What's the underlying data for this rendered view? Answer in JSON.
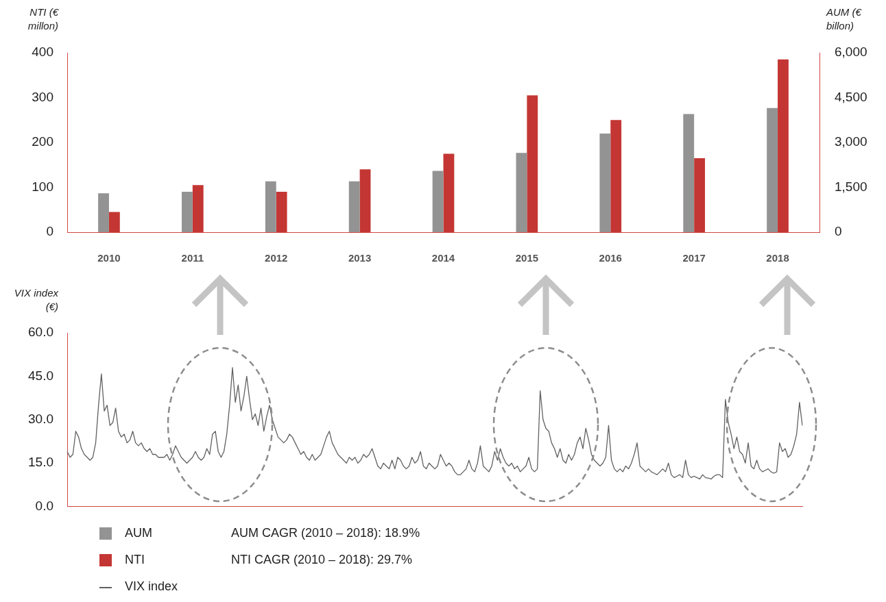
{
  "chart_data": [
    {
      "type": "bar",
      "ylabel": "NTI (€ millon)",
      "y2label": "AUM (€ billon)",
      "categories": [
        "2010",
        "2011",
        "2012",
        "2013",
        "2014",
        "2015",
        "2016",
        "2017",
        "2018"
      ],
      "series": [
        {
          "name": "AUM",
          "color": "#939393",
          "axis": "y2",
          "values": [
            1300,
            1350,
            1700,
            1700,
            2050,
            2650,
            3300,
            3950,
            4150
          ]
        },
        {
          "name": "NTI",
          "color": "#c43633",
          "values": [
            45,
            105,
            90,
            140,
            175,
            305,
            250,
            165,
            385
          ]
        }
      ],
      "ylim": [
        0,
        400
      ],
      "yticks": [
        0,
        100,
        200,
        300,
        400
      ],
      "y2lim": [
        0,
        6000
      ],
      "y2ticks": [
        0,
        {
          "value": 1500,
          "label": "1,500"
        },
        {
          "value": 3000,
          "label": "3,000"
        },
        {
          "value": 4500,
          "label": "4,500"
        },
        {
          "value": 6000,
          "label": "6,000"
        }
      ],
      "legend": "bottom",
      "annotations": [
        "AUM CAGR (2010 – 2018): 18.9%",
        "NTI CAGR (2010 – 2018): 29.7%"
      ]
    },
    {
      "type": "line",
      "ylabel": "VIX index (€)",
      "marker": "none",
      "tick_labels": "y",
      "legend": "bottom",
      "categories": [
        null,
        null,
        null,
        null,
        null,
        null,
        null,
        null,
        null,
        null,
        null,
        null,
        null,
        null,
        null,
        null,
        null,
        null,
        null,
        null,
        null,
        null,
        null,
        null,
        null,
        null,
        null,
        null,
        null,
        null,
        null,
        null,
        null,
        null,
        null,
        null,
        null,
        null,
        null,
        null,
        null,
        null,
        null,
        null,
        null,
        null,
        null,
        null,
        null,
        null,
        null,
        null,
        null,
        null,
        null,
        null,
        null,
        null,
        null,
        null,
        null,
        null,
        null,
        null,
        null,
        null,
        null,
        null,
        null,
        null,
        null,
        null,
        null,
        null,
        null,
        null,
        null,
        null,
        null,
        null,
        null,
        null,
        null,
        null,
        null,
        null,
        null,
        null,
        null,
        null,
        null,
        null,
        null,
        null,
        null,
        null,
        null,
        null,
        null,
        null,
        null,
        null,
        null,
        null,
        null,
        null,
        null,
        null,
        null,
        null,
        null,
        null,
        null,
        null,
        null,
        null,
        null,
        null,
        null,
        null,
        null,
        null,
        null,
        null,
        null,
        null,
        null,
        null,
        null,
        null,
        null,
        null,
        null,
        null,
        null,
        null,
        null,
        null,
        null,
        null,
        null,
        null,
        null,
        null,
        null,
        null,
        null,
        null,
        null,
        null,
        null,
        null,
        null,
        null,
        null,
        null,
        null,
        null,
        null,
        null,
        null,
        null,
        null,
        null,
        null,
        null,
        null,
        null,
        null,
        null,
        null,
        null,
        null,
        null,
        null,
        null,
        null,
        null,
        null,
        null,
        null,
        null,
        null,
        null,
        null,
        null,
        null,
        null,
        null,
        null,
        null,
        null,
        null,
        null,
        null,
        null,
        null,
        null,
        null,
        null,
        null,
        null,
        null,
        null,
        null,
        null,
        null,
        null,
        null,
        null,
        null,
        null,
        null,
        null,
        null,
        null,
        null,
        null,
        null,
        null,
        null,
        null,
        null,
        null,
        null,
        null,
        null,
        null,
        null,
        null,
        null,
        null,
        null,
        null,
        null,
        null,
        null,
        null,
        null,
        null,
        null,
        null,
        null,
        null,
        null,
        null,
        null,
        null,
        null,
        null,
        null,
        null,
        null,
        null,
        null,
        null,
        null,
        null,
        null
      ],
      "series": [
        {
          "name": "VIX index",
          "color": "#606060",
          "values": [
            19,
            17,
            18,
            26,
            24,
            20,
            18,
            17,
            16,
            17,
            22,
            35,
            45.8,
            33,
            35,
            28,
            29,
            34,
            26,
            24,
            25,
            22,
            23,
            26,
            22,
            21,
            22,
            20,
            19,
            20,
            18,
            18,
            17,
            17,
            17,
            18,
            16,
            18,
            21,
            19,
            17,
            16,
            15,
            16,
            17,
            19,
            17,
            16,
            17,
            20,
            18,
            25,
            26,
            19,
            17,
            19,
            25,
            35,
            48,
            36,
            42,
            33,
            38,
            45,
            37,
            30,
            32,
            28,
            34,
            26,
            31,
            35,
            30,
            27,
            24,
            23,
            22,
            23,
            25,
            24,
            22,
            20,
            18,
            19,
            17,
            16,
            18,
            16,
            17,
            18,
            21,
            24,
            26,
            22,
            20,
            18,
            17,
            16,
            15,
            17,
            16,
            17,
            15,
            16,
            18,
            17,
            18,
            20,
            17,
            14,
            13,
            15,
            14,
            13,
            16,
            13,
            17,
            16,
            14,
            13,
            14,
            17,
            15,
            16,
            19,
            14,
            13,
            15,
            14,
            13,
            14,
            18,
            16,
            14,
            15,
            14,
            12,
            11,
            11,
            12,
            13,
            16,
            13,
            12,
            15,
            21,
            14,
            13,
            12,
            14,
            19,
            16,
            20,
            17,
            15,
            14,
            15,
            13,
            14,
            12,
            13,
            14,
            17,
            13,
            12,
            13,
            40,
            30,
            27,
            26,
            22,
            20,
            17,
            20,
            16,
            15,
            18,
            16,
            18,
            22,
            24,
            20,
            27,
            23,
            18,
            16,
            15,
            14,
            15,
            17,
            28,
            16,
            13,
            12,
            13,
            12,
            14,
            13,
            15,
            18,
            22,
            14,
            13,
            12,
            13,
            12,
            11.5,
            11,
            12,
            13,
            12,
            15,
            11,
            10,
            10.5,
            11,
            10,
            16,
            11,
            10,
            10.5,
            10,
            9.5,
            11,
            10,
            9.8,
            9.5,
            10.5,
            11,
            11,
            10,
            37,
            29,
            25,
            20,
            24,
            19,
            18,
            15,
            22,
            14,
            13,
            16,
            13,
            12,
            12.5,
            13,
            12,
            11.5,
            12,
            22,
            19,
            20,
            17,
            18,
            21,
            25,
            36,
            28
          ]
        }
      ],
      "ylim": [
        0,
        60
      ],
      "yticks": [
        {
          "value": 0,
          "label": "0.0"
        },
        {
          "value": 15,
          "label": "15.0"
        },
        {
          "value": 30,
          "label": "30.0"
        },
        {
          "value": 45,
          "label": "45.0"
        },
        {
          "value": 60,
          "label": "60.0"
        }
      ]
    }
  ]
}
